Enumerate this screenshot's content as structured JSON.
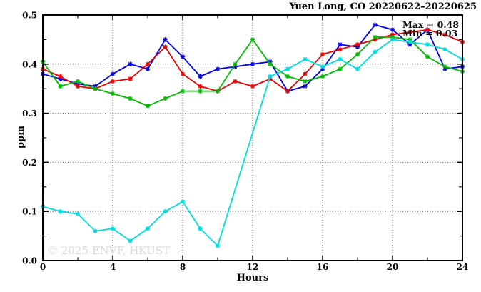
{
  "title": "Yuen Long, CO 20220622–20220625",
  "watermark": "© 2025 ENVF, HKUST",
  "annotations": {
    "max": "Max = 0.48",
    "min": "Min = 0.03"
  },
  "axes": {
    "xlabel": "Hours",
    "ylabel": "ppm"
  },
  "chart_data": {
    "type": "line",
    "title": "Yuen Long, CO 20220622–20220625",
    "xlabel": "Hours",
    "ylabel": "ppm",
    "xlim": [
      0,
      24
    ],
    "ylim": [
      0.0,
      0.5
    ],
    "x_major_ticks": [
      0,
      4,
      8,
      12,
      16,
      20,
      24
    ],
    "x_minor_ticks": [
      2,
      6,
      10,
      14,
      18,
      22
    ],
    "y_major_ticks": [
      0.0,
      0.1,
      0.2,
      0.3,
      0.4,
      0.5
    ],
    "y_minor_ticks": [
      0.05,
      0.15,
      0.25,
      0.35,
      0.45
    ],
    "grid": "dotted lines at major ticks (0.1-0.4 horizontal, 4/8/12/16/20 vertical)",
    "legend_position": "none",
    "marker": "asterisk",
    "x": [
      0,
      1,
      2,
      3,
      4,
      5,
      6,
      7,
      8,
      9,
      10,
      11,
      12,
      13,
      14,
      15,
      16,
      17,
      18,
      19,
      20,
      21,
      22,
      23,
      24
    ],
    "series": [
      {
        "name": "blue",
        "color": "#0000ee",
        "values": [
          0.38,
          0.37,
          0.36,
          0.355,
          0.38,
          0.4,
          0.39,
          0.45,
          0.415,
          0.375,
          0.39,
          0.395,
          0.4,
          0.405,
          0.345,
          0.355,
          0.39,
          0.44,
          0.435,
          0.48,
          0.47,
          0.44,
          0.47,
          0.39,
          0.395
        ]
      },
      {
        "name": "red",
        "color": "#ee0000",
        "values": [
          0.39,
          0.375,
          0.355,
          0.35,
          0.365,
          0.37,
          0.4,
          0.435,
          0.38,
          0.355,
          0.345,
          0.365,
          0.355,
          0.37,
          0.345,
          0.38,
          0.42,
          0.43,
          0.44,
          0.45,
          0.46,
          0.465,
          0.47,
          0.46,
          0.445
        ]
      },
      {
        "name": "green",
        "color": "#00bb00",
        "values": [
          0.405,
          0.355,
          0.365,
          0.35,
          0.34,
          0.33,
          0.315,
          0.33,
          0.345,
          0.345,
          0.345,
          0.4,
          0.45,
          0.4,
          0.375,
          0.365,
          0.375,
          0.39,
          0.42,
          0.455,
          0.455,
          0.45,
          0.415,
          0.395,
          0.385
        ]
      },
      {
        "name": "cyan",
        "color": "#00dcdc",
        "values": [
          0.11,
          0.1,
          0.095,
          0.06,
          0.065,
          0.04,
          0.065,
          0.1,
          0.12,
          0.065,
          0.03,
          null,
          null,
          0.375,
          0.39,
          0.41,
          0.395,
          0.41,
          0.39,
          0.425,
          0.45,
          0.445,
          0.44,
          0.43,
          0.41
        ]
      }
    ],
    "annotations": [
      "Max = 0.48",
      "Min = 0.03"
    ],
    "stats": {
      "max": 0.48,
      "min": 0.03
    }
  }
}
